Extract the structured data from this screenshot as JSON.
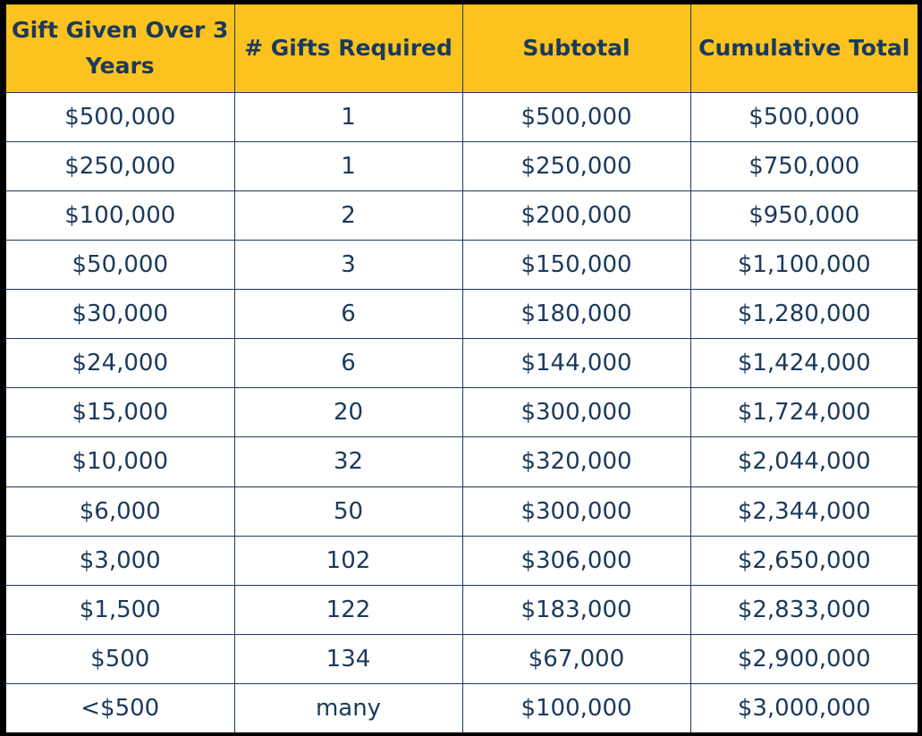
{
  "table": {
    "headers": [
      "Gift Given Over 3 Years",
      "# Gifts Required",
      "Subtotal",
      "Cumulative Total"
    ],
    "rows": [
      [
        "$500,000",
        "1",
        "$500,000",
        "$500,000"
      ],
      [
        "$250,000",
        "1",
        "$250,000",
        "$750,000"
      ],
      [
        "$100,000",
        "2",
        "$200,000",
        "$950,000"
      ],
      [
        "$50,000",
        "3",
        "$150,000",
        "$1,100,000"
      ],
      [
        "$30,000",
        "6",
        "$180,000",
        "$1,280,000"
      ],
      [
        "$24,000",
        "6",
        "$144,000",
        "$1,424,000"
      ],
      [
        "$15,000",
        "20",
        "$300,000",
        "$1,724,000"
      ],
      [
        "$10,000",
        "32",
        "$320,000",
        "$2,044,000"
      ],
      [
        "$6,000",
        "50",
        "$300,000",
        "$2,344,000"
      ],
      [
        "$3,000",
        "102",
        "$306,000",
        "$2,650,000"
      ],
      [
        "$1,500",
        "122",
        "$183,000",
        "$2,833,000"
      ],
      [
        "$500",
        "134",
        "$67,000",
        "$2,900,000"
      ],
      [
        "<$500",
        "many",
        "$100,000",
        "$3,000,000"
      ]
    ]
  },
  "colors": {
    "header_background": "#fcc21f",
    "text": "#1b3a5c",
    "cell_background": "#ffffff",
    "frame": "#000000"
  }
}
